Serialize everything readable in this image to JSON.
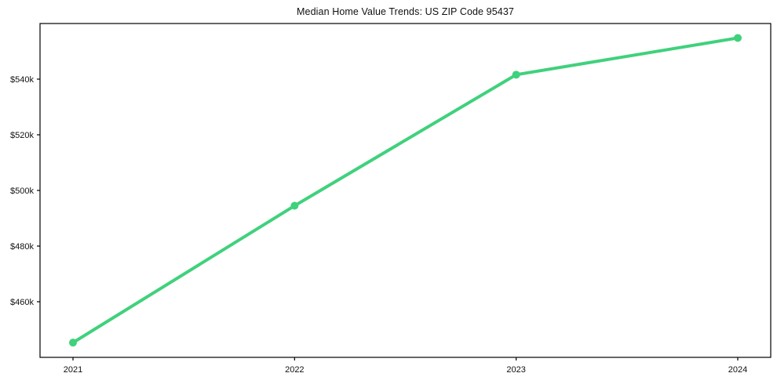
{
  "page": {
    "background": "#ffffff",
    "accent_color": "#40d17c",
    "axis_color": "#000000",
    "text_color": "#111111"
  },
  "chart_data": {
    "type": "line",
    "title": "Median Home Value Trends: US ZIP Code 95437",
    "categories": [
      "2021",
      "2022",
      "2023",
      "2024"
    ],
    "series": [
      {
        "name": "Median Home Value",
        "values": [
          445300,
          494500,
          541600,
          554800
        ],
        "color": "#40d17c"
      }
    ],
    "xlabel": "",
    "ylabel": "",
    "ylim": [
      440000,
      560000
    ],
    "yticks": [
      460000,
      480000,
      500000,
      520000,
      540000
    ],
    "ytick_labels": [
      "$460k",
      "$480k",
      "$500k",
      "$520k",
      "$540k"
    ],
    "grid": false,
    "legend": "none",
    "marker": "circle",
    "line_width": 4,
    "marker_radius": 5
  }
}
